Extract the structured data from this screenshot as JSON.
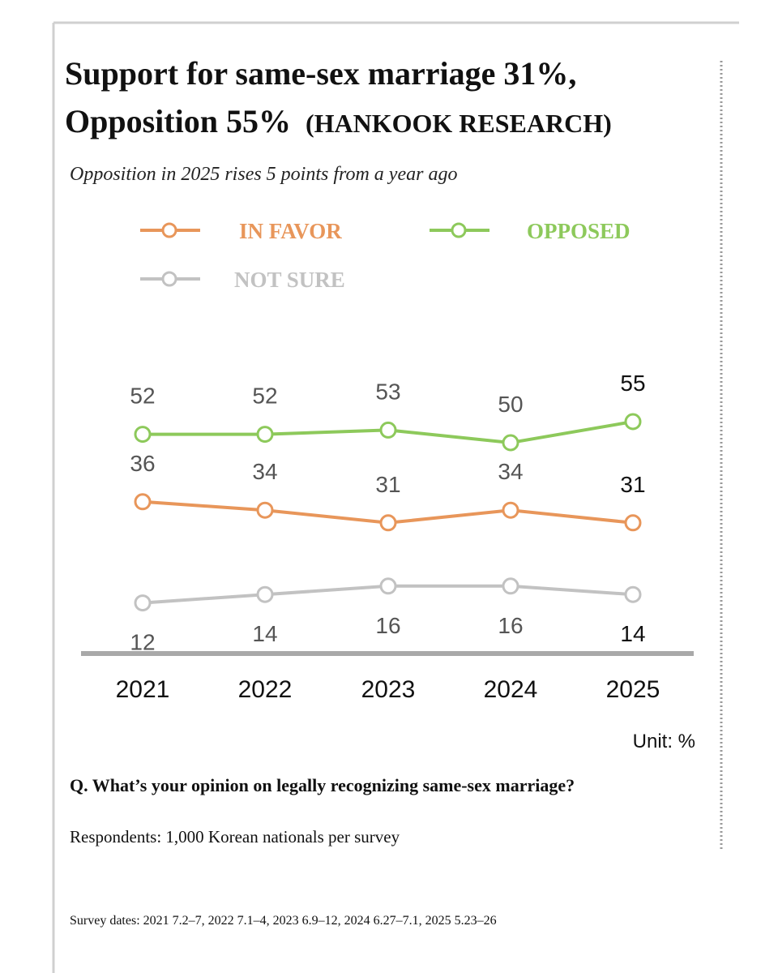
{
  "chart_data": {
    "type": "line",
    "title": [
      "Support for same-sex marriage 31%,",
      "Opposition 55%"
    ],
    "title_note": "(HANKOOK RESEARCH)",
    "subtitle": "Opposition in 2025 rises 5 points from a year ago",
    "categories": [
      "2021",
      "2022",
      "2023",
      "2024",
      "2025"
    ],
    "series": [
      {
        "name": "IN FAVOR",
        "color": "#e8965a",
        "values": [
          36,
          34,
          31,
          34,
          31
        ]
      },
      {
        "name": "OPPOSED",
        "color": "#8dc95b",
        "values": [
          52,
          52,
          53,
          50,
          55
        ]
      },
      {
        "name": "NOT SURE",
        "color": "#c2c2c2",
        "values": [
          12,
          14,
          16,
          16,
          14
        ]
      }
    ],
    "ylim": [
      0,
      55
    ],
    "unit": "Unit: %",
    "question": "Q. What’s your opinion on legally recognizing same-sex marriage?",
    "respondents": "Respondents: 1,000 Korean nationals per survey",
    "survey_dates": "Survey dates: 2021 7.2–7, 2022 7.1–4, 2023 6.9–12, 2024 6.27–7.1, 2025 5.23–26"
  }
}
